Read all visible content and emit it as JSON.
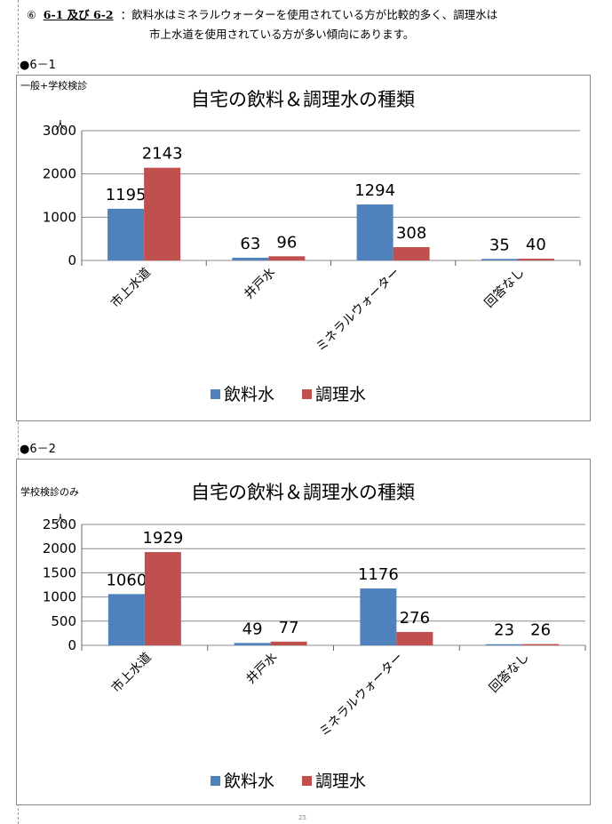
{
  "header": {
    "circle_no": "⑥",
    "ref": "6-1 及び 6-2",
    "line1": "：飲料水はミネラルウォーターを使用されている方が比較的多く、調理水は",
    "line2": "市上水道を使用されている方が多い傾向にあります。"
  },
  "section1_label": "●6－1",
  "section2_label": "●6－2",
  "page_number": "25",
  "colors": {
    "drinking": "#4f81bd",
    "cooking": "#c0504d",
    "grid": "#8c8c8c"
  },
  "chart_data": [
    {
      "type": "bar",
      "corner_label": "一般+学校検診",
      "title": "自宅の飲料＆調理水の種類",
      "ylabel": "人",
      "categories": [
        "市上水道",
        "井戸水",
        "ミネラルウォーター",
        "回答なし"
      ],
      "series": [
        {
          "name": "飲料水",
          "values": [
            1195,
            63,
            1294,
            35
          ]
        },
        {
          "name": "調理水",
          "values": [
            2143,
            96,
            308,
            40
          ]
        }
      ],
      "ylim": [
        0,
        3000
      ],
      "yticks": [
        0,
        1000,
        2000,
        3000
      ],
      "grid": true,
      "legend": "bottom"
    },
    {
      "type": "bar",
      "corner_label": "学校検診のみ",
      "title": "自宅の飲料＆調理水の種類",
      "ylabel": "人",
      "categories": [
        "市上水道",
        "井戸水",
        "ミネラルウォーター",
        "回答なし"
      ],
      "series": [
        {
          "name": "飲料水",
          "values": [
            1060,
            49,
            1176,
            23
          ]
        },
        {
          "name": "調理水",
          "values": [
            1929,
            77,
            276,
            26
          ]
        }
      ],
      "ylim": [
        0,
        2500
      ],
      "yticks": [
        0,
        500,
        1000,
        1500,
        2000,
        2500
      ],
      "grid": true,
      "legend": "bottom"
    }
  ]
}
